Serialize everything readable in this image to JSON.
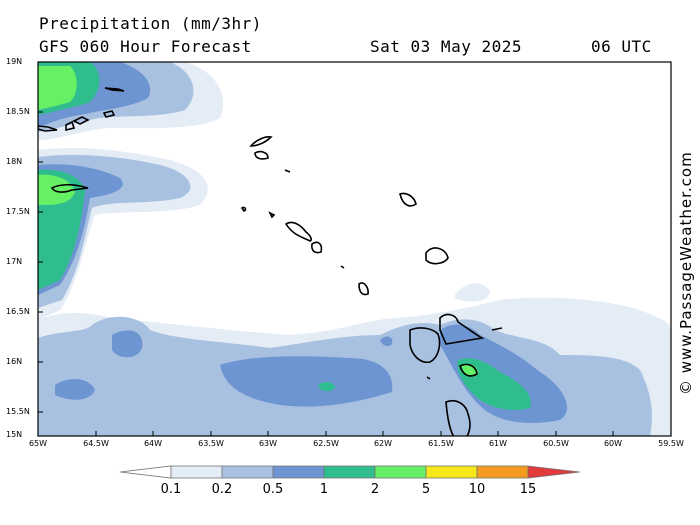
{
  "header": {
    "title": "Precipitation (mm/3hr)",
    "model": "GFS 060 Hour Forecast",
    "date": "Sat 03 May 2025",
    "time": "06 UTC"
  },
  "watermark": "© www.PassageWeather.com",
  "axes": {
    "lat_labels": [
      "19N",
      "18.5N",
      "18N",
      "17.5N",
      "17N",
      "16.5N",
      "16N",
      "15.5N",
      "15N"
    ],
    "lon_labels": [
      "65W",
      "64.5W",
      "64W",
      "63.5W",
      "63W",
      "62.5W",
      "62W",
      "61.5W",
      "61W",
      "60.5W",
      "60W",
      "59.5W"
    ]
  },
  "colorbar": {
    "levels": [
      "0.1",
      "0.2",
      "0.5",
      "1",
      "2",
      "5",
      "10",
      "15"
    ],
    "colors": [
      "#e4ecf6",
      "#a9c1e1",
      "#6d95d2",
      "#2fbd8e",
      "#66f066",
      "#f5e81a",
      "#f39a1f",
      "#e03a3a"
    ]
  },
  "palette": {
    "outline": "#000000",
    "frame": "#000000"
  }
}
